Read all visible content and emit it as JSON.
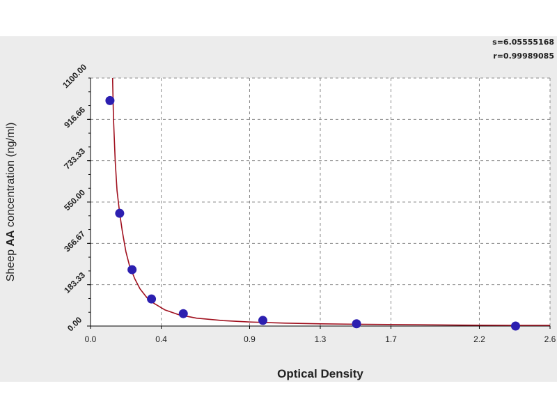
{
  "stats": {
    "s_label": "s=6.05555168",
    "r_label": "r=0.99989085"
  },
  "colors": {
    "frame_bg": "#ececec",
    "plot_bg": "#ffffff",
    "grid": "#8a8a8a",
    "curve": "#a0101e",
    "point": "#2c1fb0",
    "axis": "#000000"
  },
  "chart_data": {
    "type": "scatter",
    "title": "",
    "xlabel": "Optical Density",
    "ylabel_parts": [
      "Sheep ",
      "AA",
      " concentration (ng/ml)"
    ],
    "xlim": [
      0.0,
      2.6
    ],
    "ylim": [
      0.0,
      1100.0
    ],
    "x_ticks": [
      0.0,
      0.4,
      0.9,
      1.3,
      1.7,
      2.2,
      2.6
    ],
    "x_tick_labels": [
      "0.0",
      "0.4",
      "0.9",
      "1.3",
      "1.7",
      "2.2",
      "2.6"
    ],
    "y_ticks": [
      0.0,
      183.33,
      366.67,
      550.0,
      733.33,
      916.66,
      1100.0
    ],
    "y_tick_labels": [
      "0.00",
      "183.33",
      "366.67",
      "550.00",
      "733.33",
      "916.66",
      "1100.00"
    ],
    "grid": true,
    "series": [
      {
        "kind": "points",
        "x": [
          0.11,
          0.165,
          0.235,
          0.345,
          0.525,
          0.975,
          1.505,
          2.405
        ],
        "y": [
          1000,
          500,
          250,
          120,
          55,
          25,
          10,
          0
        ]
      },
      {
        "kind": "fit-curve",
        "x": [
          0.125,
          0.13,
          0.14,
          0.15,
          0.165,
          0.18,
          0.2,
          0.22,
          0.25,
          0.28,
          0.32,
          0.36,
          0.42,
          0.5,
          0.6,
          0.75,
          0.9,
          1.1,
          1.3,
          1.5,
          1.8,
          2.1,
          2.4,
          2.6
        ],
        "y": [
          1100,
          920,
          730,
          600,
          500,
          420,
          330,
          270,
          210,
          165,
          125,
          100,
          72,
          50,
          35,
          24,
          18,
          13,
          10,
          8,
          6,
          4,
          3,
          3
        ]
      }
    ]
  }
}
